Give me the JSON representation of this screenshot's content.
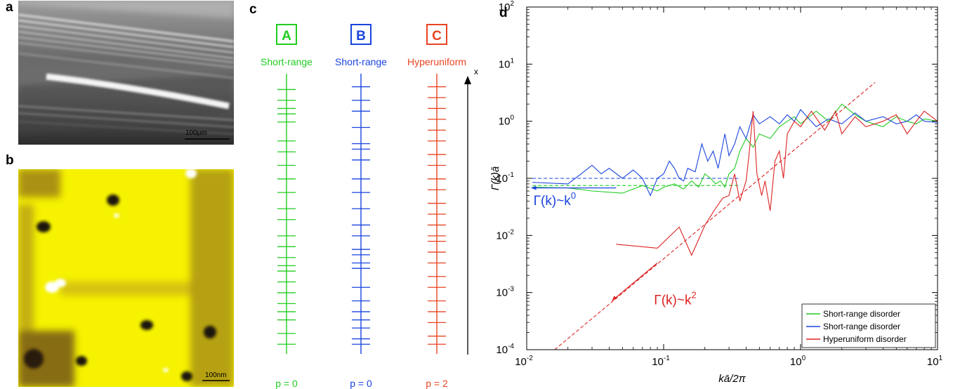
{
  "panels": {
    "a": {
      "label": "a",
      "scalebar": "100μm"
    },
    "b": {
      "label": "b",
      "scalebar": "100nm"
    },
    "c": {
      "label": "c",
      "axis_label": "x",
      "columns": [
        {
          "letter": "A",
          "kind": "Short-range",
          "p_label": "p = 0",
          "color": "#22cc22",
          "ticks": [
            0.02,
            0.06,
            0.11,
            0.14,
            0.17,
            0.21,
            0.25,
            0.29,
            0.31,
            0.34,
            0.38,
            0.42,
            0.48,
            0.52,
            0.58,
            0.63,
            0.68,
            0.73,
            0.77,
            0.84,
            0.87,
            0.89,
            0.92,
            0.96
          ]
        },
        {
          "letter": "B",
          "kind": "Short-range",
          "p_label": "p = 0",
          "color": "#1a44dd",
          "ticks": [
            0.02,
            0.04,
            0.08,
            0.11,
            0.14,
            0.18,
            0.23,
            0.3,
            0.32,
            0.35,
            0.37,
            0.42,
            0.46,
            0.52,
            0.58,
            0.63,
            0.7,
            0.74,
            0.76,
            0.82,
            0.88,
            0.92,
            0.97
          ]
        },
        {
          "letter": "C",
          "kind": "Hyperuniform",
          "p_label": "p = 2",
          "color": "#e84422",
          "ticks": [
            0.02,
            0.05,
            0.1,
            0.14,
            0.18,
            0.23,
            0.27,
            0.32,
            0.36,
            0.4,
            0.42,
            0.46,
            0.5,
            0.54,
            0.59,
            0.63,
            0.68,
            0.72,
            0.77,
            0.81,
            0.85,
            0.89,
            0.93,
            0.97
          ]
        }
      ]
    },
    "d": {
      "label": "d"
    }
  },
  "chart_data": {
    "type": "line",
    "xlabel": "kā/2π",
    "ylabel": "Γ(k)ā",
    "x_scale": "log",
    "y_scale": "log",
    "xlim": [
      0.01,
      10
    ],
    "ylim": [
      0.0001,
      100
    ],
    "xticks": [
      {
        "base": "10",
        "exp": "-2"
      },
      {
        "base": "10",
        "exp": "-1"
      },
      {
        "base": "10",
        "exp": "0"
      },
      {
        "base": "10",
        "exp": "1"
      }
    ],
    "yticks": [
      {
        "base": "10",
        "exp": "-4"
      },
      {
        "base": "10",
        "exp": "-3"
      },
      {
        "base": "10",
        "exp": "-2"
      },
      {
        "base": "10",
        "exp": "-1"
      },
      {
        "base": "10",
        "exp": "0"
      },
      {
        "base": "10",
        "exp": "1"
      },
      {
        "base": "10",
        "exp": "2"
      }
    ],
    "legend_position": "bottom-right",
    "series": [
      {
        "name": "Short-range disorder",
        "color": "#22cc22",
        "x": [
          0.011,
          0.02,
          0.03,
          0.05,
          0.07,
          0.09,
          0.1,
          0.12,
          0.14,
          0.16,
          0.18,
          0.2,
          0.22,
          0.24,
          0.26,
          0.28,
          0.3,
          0.33,
          0.36,
          0.4,
          0.45,
          0.5,
          0.6,
          0.7,
          0.8,
          0.9,
          1.0,
          1.3,
          1.6,
          2.0,
          2.5,
          3.0,
          4.0,
          5.0,
          6.0,
          7.0,
          8.0,
          10.0
        ],
        "y": [
          0.07,
          0.068,
          0.06,
          0.055,
          0.075,
          0.06,
          0.07,
          0.08,
          0.065,
          0.09,
          0.07,
          0.12,
          0.1,
          0.08,
          0.09,
          0.07,
          0.12,
          0.15,
          0.3,
          0.5,
          0.35,
          0.6,
          0.5,
          0.8,
          1.0,
          1.2,
          0.9,
          1.5,
          1.0,
          2.0,
          1.3,
          1.0,
          0.8,
          1.2,
          1.0,
          0.9,
          1.1,
          1.0
        ]
      },
      {
        "name": "Short-range disorder",
        "color": "#1a44dd",
        "x": [
          0.011,
          0.02,
          0.025,
          0.03,
          0.035,
          0.04,
          0.05,
          0.06,
          0.07,
          0.08,
          0.09,
          0.1,
          0.11,
          0.12,
          0.13,
          0.14,
          0.15,
          0.17,
          0.19,
          0.21,
          0.23,
          0.25,
          0.28,
          0.3,
          0.33,
          0.36,
          0.4,
          0.45,
          0.5,
          0.6,
          0.7,
          0.8,
          0.9,
          1.0,
          1.3,
          1.6,
          2.0,
          2.5,
          3.0,
          4.0,
          5.0,
          6.0,
          7.0,
          8.0,
          10.0
        ],
        "y": [
          0.085,
          0.08,
          0.12,
          0.17,
          0.12,
          0.15,
          0.1,
          0.14,
          0.1,
          0.05,
          0.1,
          0.12,
          0.2,
          0.15,
          0.1,
          0.09,
          0.15,
          0.13,
          0.4,
          0.2,
          0.3,
          0.15,
          0.6,
          0.25,
          0.4,
          0.8,
          0.5,
          1.3,
          0.9,
          1.2,
          0.9,
          1.3,
          1.0,
          1.6,
          0.8,
          1.1,
          0.9,
          1.4,
          1.0,
          1.2,
          0.9,
          1.0,
          1.3,
          1.0,
          0.95
        ]
      },
      {
        "name": "Hyperuniform disorder",
        "color": "#dd2222",
        "x": [
          0.045,
          0.09,
          0.13,
          0.16,
          0.2,
          0.24,
          0.27,
          0.3,
          0.33,
          0.36,
          0.4,
          0.42,
          0.45,
          0.48,
          0.52,
          0.55,
          0.6,
          0.65,
          0.7,
          0.75,
          0.8,
          0.9,
          1.0,
          1.2,
          1.5,
          1.8,
          2.0,
          2.5,
          3.0,
          4.0,
          5.0,
          6.0,
          7.0,
          8.0,
          10.0
        ],
        "y": [
          0.007,
          0.006,
          0.014,
          0.0045,
          0.015,
          0.03,
          0.045,
          0.05,
          0.12,
          0.04,
          0.09,
          0.25,
          1.5,
          0.12,
          0.05,
          0.09,
          0.027,
          0.2,
          0.3,
          0.1,
          0.6,
          1.0,
          0.8,
          1.5,
          0.7,
          1.5,
          0.6,
          1.2,
          0.8,
          1.0,
          1.3,
          0.6,
          1.0,
          1.5,
          1.0
        ]
      }
    ],
    "fit_lines": [
      {
        "color": "#1a44dd",
        "y": 0.1,
        "x_range": [
          0.011,
          0.35
        ],
        "dashed": true
      },
      {
        "color": "#22cc22",
        "y": 0.075,
        "x_range": [
          0.011,
          0.35
        ],
        "dashed": true
      },
      {
        "color": "#dd2222",
        "slope": 2,
        "x0": 0.016,
        "y0": 0.0001,
        "x_range": [
          0.016,
          3.5
        ],
        "dashed": true
      }
    ],
    "annotations": [
      {
        "text_base": "Γ(k)~k",
        "text_exp": "0",
        "color": "#1a44dd"
      },
      {
        "text_base": "Γ(k)~k",
        "text_exp": "2",
        "color": "#dd2222"
      }
    ]
  }
}
